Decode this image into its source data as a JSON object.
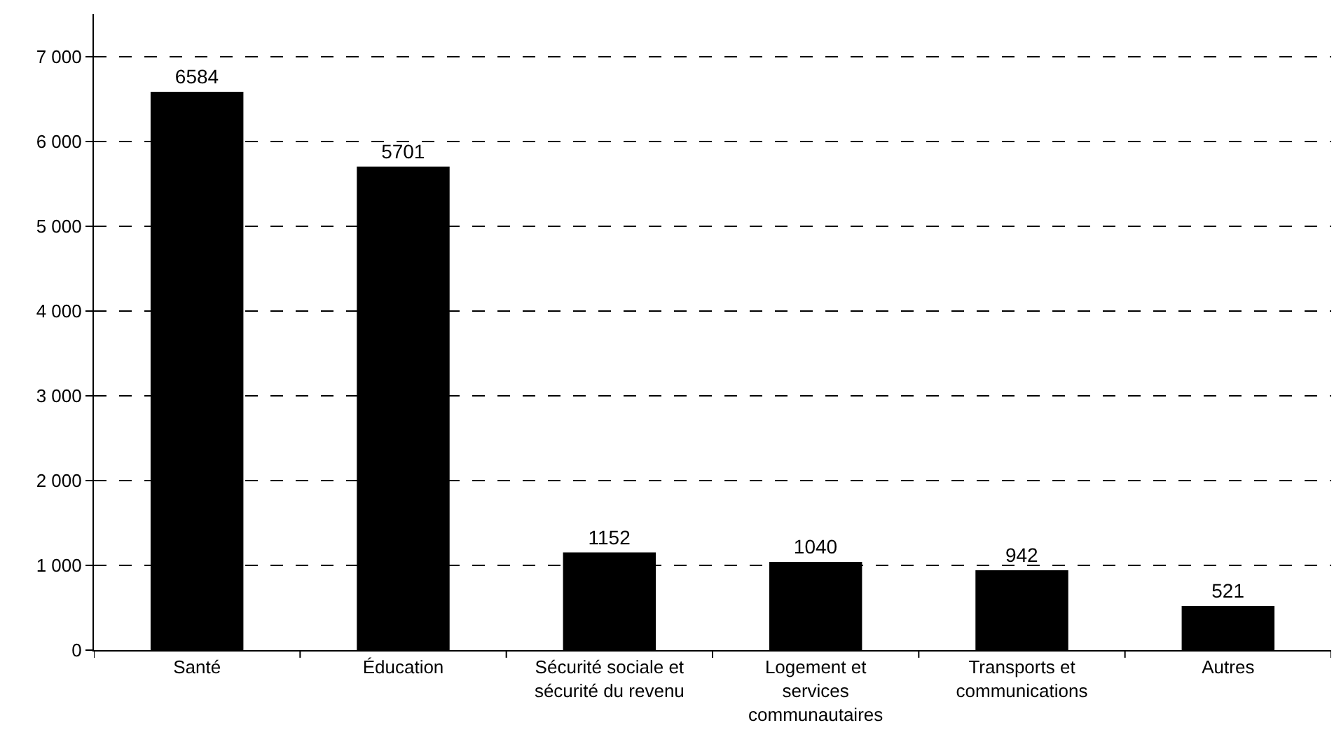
{
  "chart_data": {
    "type": "bar",
    "categories": [
      "Santé",
      "Éducation",
      "Sécurité sociale et\nsécurité du revenu",
      "Logement et\nservices\ncommunautaires",
      "Transports et\ncommunications",
      "Autres"
    ],
    "values": [
      6584,
      5701,
      1152,
      1040,
      942,
      521
    ],
    "color": "#000000",
    "data_labels": true,
    "ylim": [
      0,
      7500
    ],
    "yticks": [
      0,
      {
        "value": 1000,
        "label": "1 000"
      },
      {
        "value": 2000,
        "label": "2 000"
      },
      {
        "value": 3000,
        "label": "3 000"
      },
      {
        "value": 4000,
        "label": "4 000"
      },
      {
        "value": 5000,
        "label": "5 000"
      },
      {
        "value": 6000,
        "label": "6 000"
      },
      {
        "value": 7000,
        "label": "7 000"
      }
    ],
    "grid": "y",
    "line_style": "dashed"
  }
}
